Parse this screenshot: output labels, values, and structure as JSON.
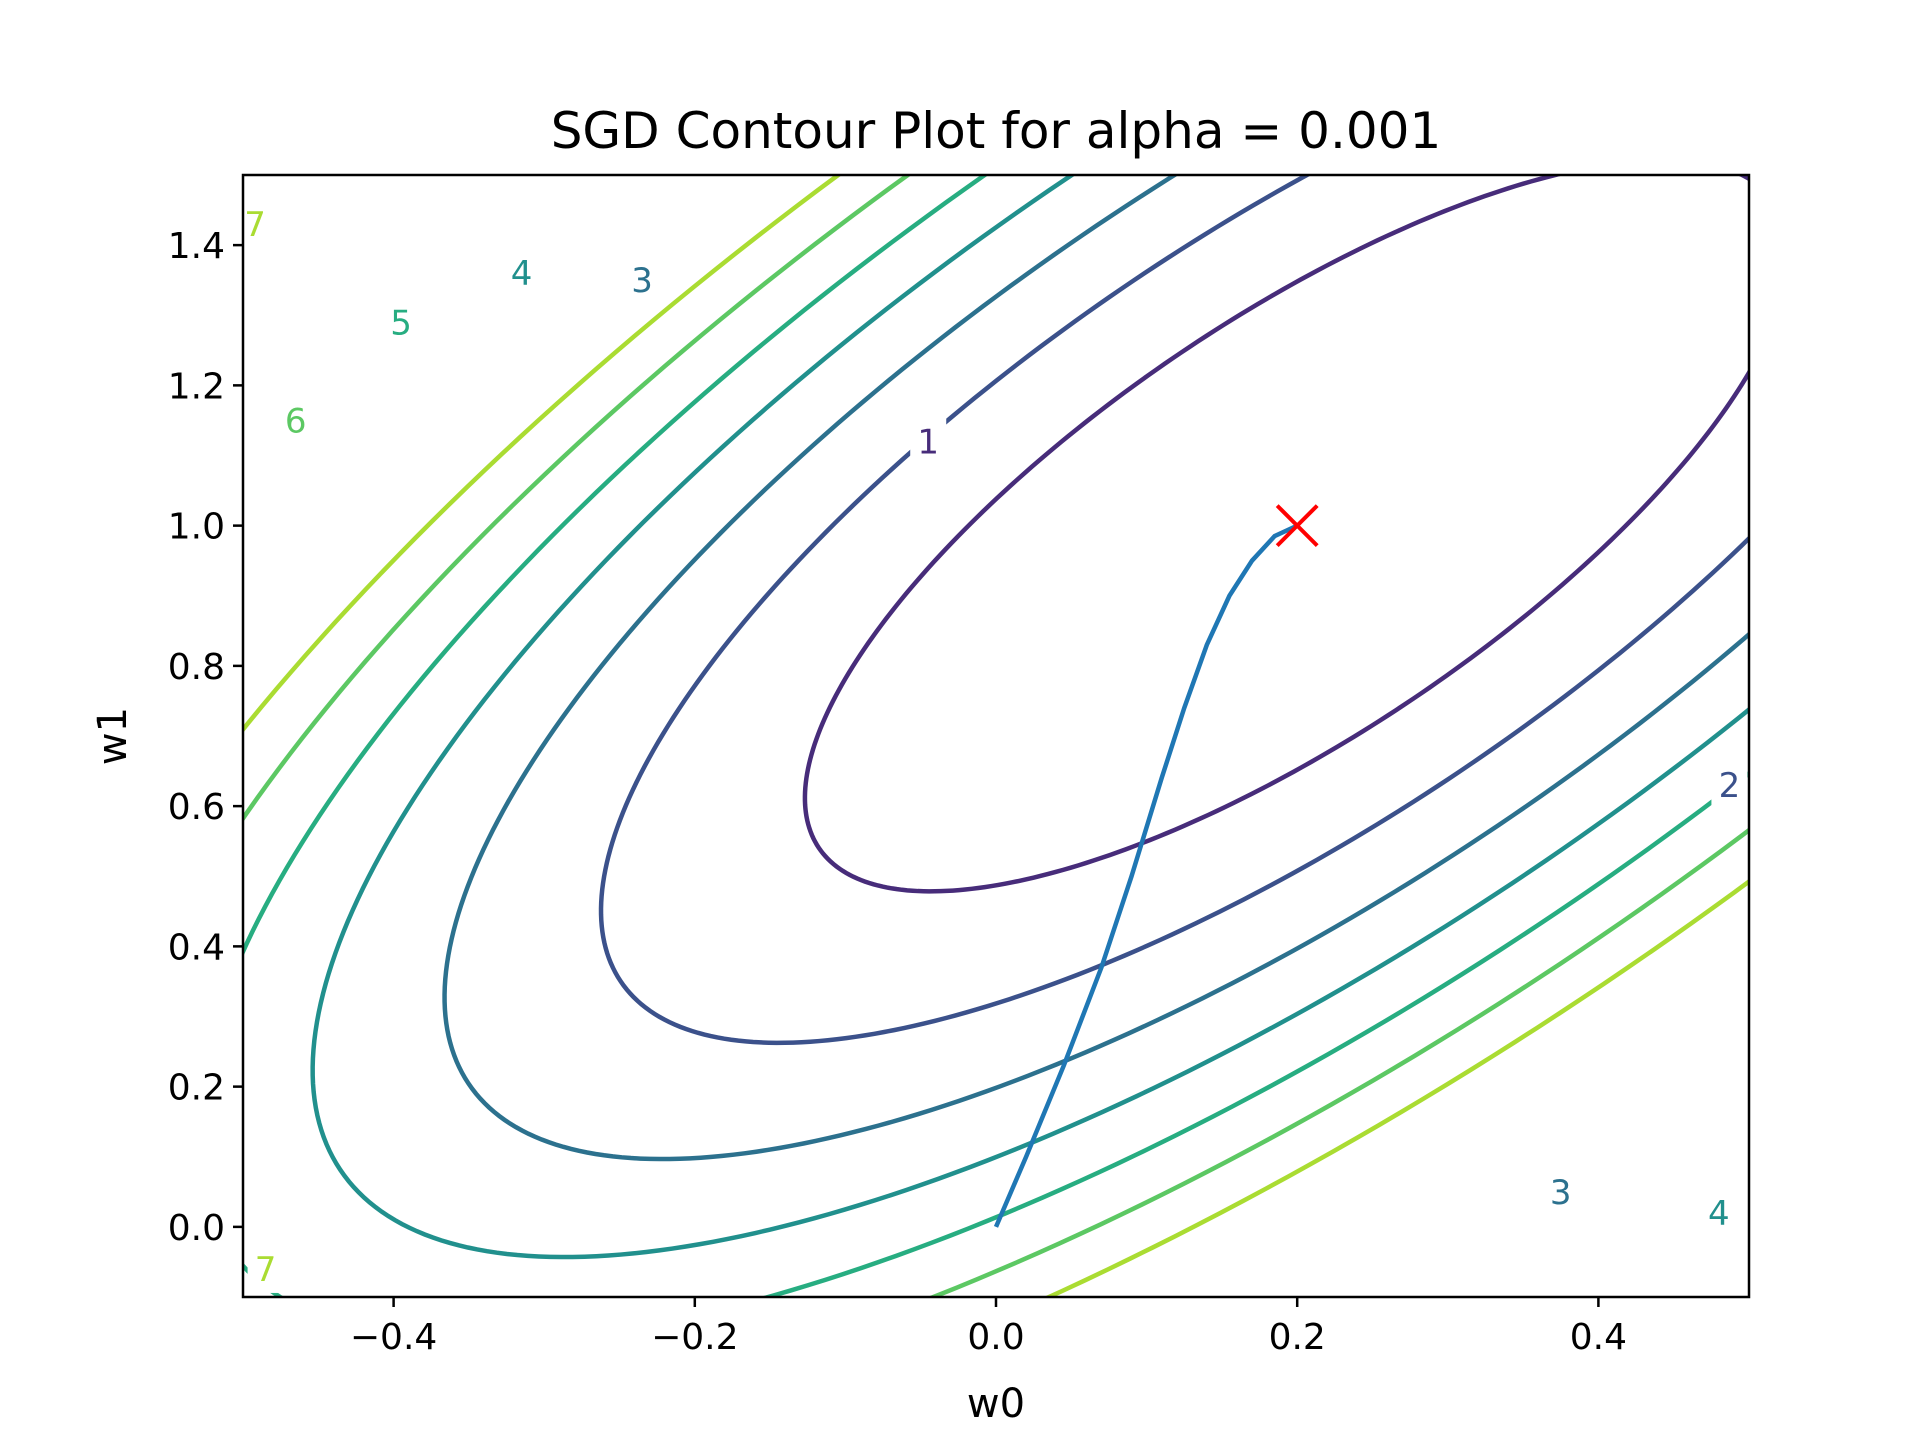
{
  "chart_data": {
    "type": "contour",
    "title": "SGD Contour Plot for alpha = 0.001",
    "xlabel": "w0",
    "ylabel": "w1",
    "xlim": [
      -0.5,
      0.5
    ],
    "ylim": [
      -0.1,
      1.5
    ],
    "xticks": [
      -0.4,
      -0.2,
      0.0,
      0.2,
      0.4
    ],
    "xtick_labels": [
      "−0.4",
      "−0.2",
      "0.0",
      "0.2",
      "0.4"
    ],
    "yticks": [
      0.0,
      0.2,
      0.4,
      0.6,
      0.8,
      1.0,
      1.2,
      1.4
    ],
    "ytick_labels": [
      "0.0",
      "0.2",
      "0.4",
      "0.6",
      "0.8",
      "1.0",
      "1.2",
      "1.4"
    ],
    "grid": false,
    "contour_function": {
      "form": "f(w0,w1) = a*(w0-0.2)^2 + b*(w0-0.2)*(w1-1) + c*(w1-1)^2",
      "a": 21.0,
      "b": -19.6,
      "c": 8.25
    },
    "levels": [
      {
        "value": 1,
        "label": "1",
        "color": "#472c7a"
      },
      {
        "value": 2,
        "label": "2",
        "color": "#3b518b"
      },
      {
        "value": 3,
        "label": "3",
        "color": "#2c718e"
      },
      {
        "value": 4,
        "label": "4",
        "color": "#21908d"
      },
      {
        "value": 5,
        "label": "5",
        "color": "#27ad81"
      },
      {
        "value": 6,
        "label": "6",
        "color": "#5cc863"
      },
      {
        "value": 7,
        "label": "7",
        "color": "#aadc32"
      }
    ],
    "contour_labels": [
      {
        "level": 1,
        "text": "1",
        "x": -0.045,
        "y": 1.12
      },
      {
        "level": 2,
        "text": "2",
        "x": 0.487,
        "y": 0.63
      },
      {
        "level": 3,
        "text": "3",
        "x": -0.235,
        "y": 1.35
      },
      {
        "level": 3,
        "text": "3",
        "x": 0.375,
        "y": 0.05
      },
      {
        "level": 4,
        "text": "4",
        "x": -0.315,
        "y": 1.36
      },
      {
        "level": 4,
        "text": "4",
        "x": 0.48,
        "y": 0.02
      },
      {
        "level": 5,
        "text": "5",
        "x": -0.395,
        "y": 1.29
      },
      {
        "level": 6,
        "text": "6",
        "x": -0.465,
        "y": 1.15
      },
      {
        "level": 7,
        "text": "7",
        "x": -0.492,
        "y": 1.43
      },
      {
        "level": 7,
        "text": "7",
        "x": -0.485,
        "y": -0.06
      }
    ],
    "series": [
      {
        "color": "#1f77b4",
        "x": [
          0.0,
          0.02,
          0.045,
          0.07,
          0.09,
          0.11,
          0.125,
          0.14,
          0.155,
          0.17,
          0.185,
          0.2
        ],
        "y": [
          0.0,
          0.1,
          0.23,
          0.37,
          0.5,
          0.64,
          0.74,
          0.83,
          0.9,
          0.95,
          0.985,
          1.0
        ]
      }
    ],
    "marker": {
      "x": 0.2,
      "y": 1.0,
      "symbol": "x",
      "color": "#ff0000"
    }
  }
}
